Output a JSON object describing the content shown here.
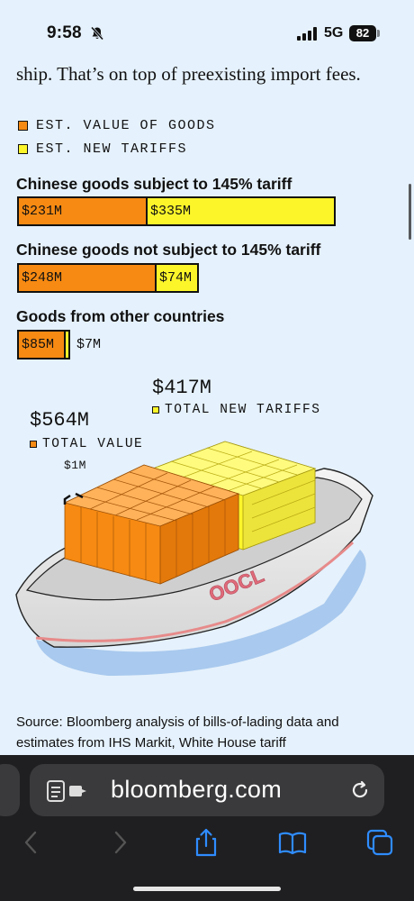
{
  "status_bar": {
    "time": "9:58",
    "network": "5G",
    "battery": "82"
  },
  "article": {
    "intro": "ship. That’s on top of preexisting import fees.",
    "legend": [
      {
        "label": "EST. VALUE OF GOODS",
        "color": "#f78a12"
      },
      {
        "label": "EST. NEW TARIFFS",
        "color": "#fbf52a"
      }
    ],
    "sections": [
      {
        "title": "Chinese goods subject to 145% tariff",
        "value": "$231M",
        "tariff": "$335M"
      },
      {
        "title": "Chinese goods not subject to 145% tariff",
        "value": "$248M",
        "tariff": "$74M"
      },
      {
        "title": "Goods from other countries",
        "value": "$85M",
        "tariff": "$7M"
      }
    ],
    "totals": {
      "tariff_value": "$417M",
      "tariff_label": "TOTAL NEW TARIFFS",
      "goods_value": "$564M",
      "goods_label": "TOTAL VALUE",
      "unit_label": "$1M"
    },
    "ship_brand": "OOCL",
    "source": "Source: Bloomberg analysis of bills-of-lading data and estimates from IHS Markit, White House tariff"
  },
  "chart_data": {
    "type": "bar",
    "orientation": "horizontal",
    "stacked": true,
    "categories": [
      "Chinese goods subject to 145% tariff",
      "Chinese goods not subject to 145% tariff",
      "Goods from other countries"
    ],
    "series": [
      {
        "name": "EST. VALUE OF GOODS",
        "values": [
          231,
          248,
          85
        ],
        "color": "#f78a12"
      },
      {
        "name": "EST. NEW TARIFFS",
        "values": [
          335,
          74,
          7
        ],
        "color": "#fbf52a"
      }
    ]
  },
  "browser": {
    "url": "bloomberg.com"
  }
}
